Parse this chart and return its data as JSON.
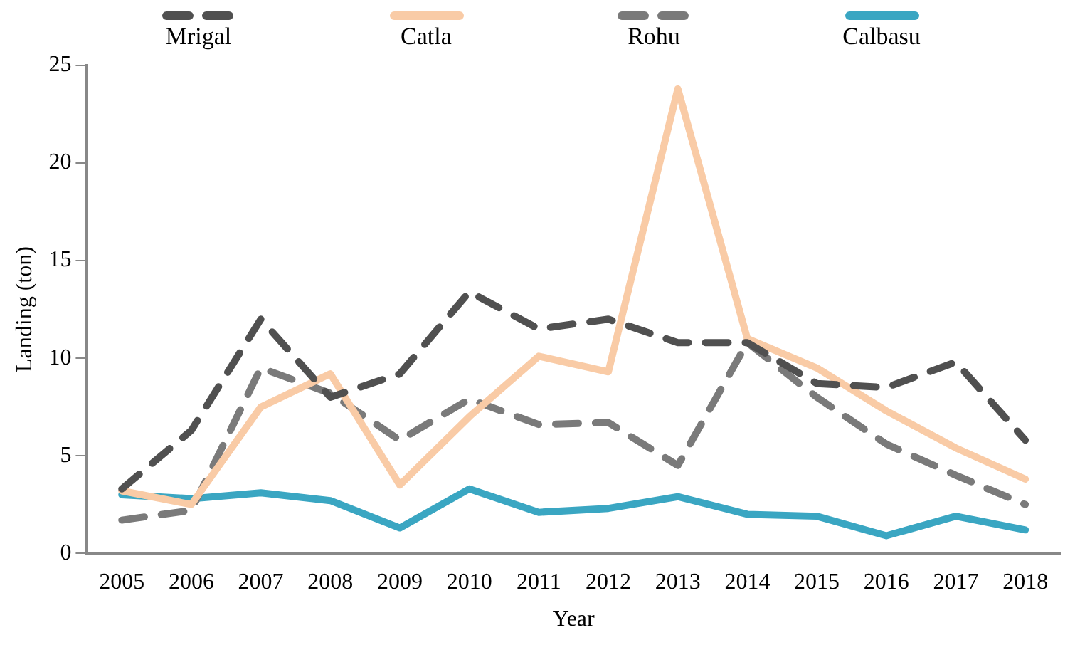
{
  "chart_data": {
    "type": "line",
    "xlabel": "Year",
    "ylabel": "Landing (ton)",
    "categories": [
      "2005",
      "2006",
      "2007",
      "2008",
      "2009",
      "2010",
      "2011",
      "2012",
      "2013",
      "2014",
      "2015",
      "2016",
      "2017",
      "2018"
    ],
    "ylim": [
      0,
      25
    ],
    "yticks": [
      0,
      5,
      10,
      15,
      20,
      25
    ],
    "grid": false,
    "legend": "top",
    "marker": "none",
    "series": [
      {
        "name": "Mrigal",
        "color": "#505050",
        "line_style": "dashed",
        "values": [
          3.3,
          6.3,
          12,
          8,
          9.2,
          13.4,
          11.5,
          12,
          10.8,
          10.8,
          8.7,
          8.5,
          9.8,
          5.8
        ]
      },
      {
        "name": "Catla",
        "color": "#f9cba6",
        "line_style": "solid",
        "values": [
          3.2,
          2.5,
          7.5,
          9.2,
          3.5,
          7,
          10.1,
          9.3,
          23.8,
          11,
          9.5,
          7.3,
          5.4,
          3.8
        ]
      },
      {
        "name": "Rohu",
        "color": "#7a7a7a",
        "line_style": "dashed",
        "values": [
          1.7,
          2.2,
          9.5,
          8.2,
          5.8,
          7.9,
          6.6,
          6.7,
          4.5,
          10.8,
          8,
          5.6,
          4,
          2.5
        ]
      },
      {
        "name": "Calbasu",
        "color": "#3aa6c2",
        "line_style": "solid",
        "values": [
          3.0,
          2.8,
          3.1,
          2.7,
          1.3,
          3.3,
          2.1,
          2.3,
          2.9,
          2.0,
          1.9,
          0.9,
          1.9,
          1.2
        ]
      }
    ]
  }
}
